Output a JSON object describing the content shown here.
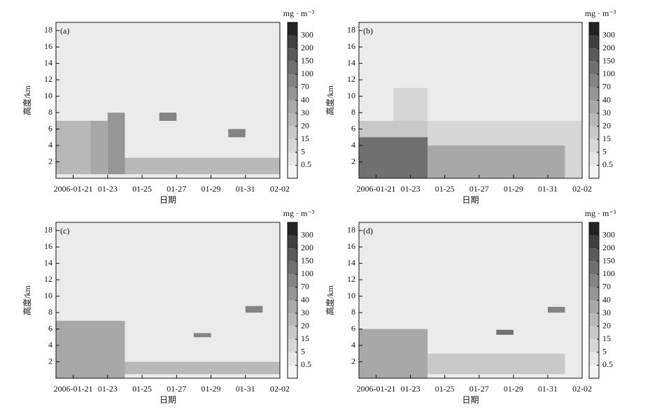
{
  "chart_data": [
    {
      "type": "heatmap",
      "label": "(a)",
      "ylabel": "高度/km",
      "xlabel": "日期",
      "colorbar_label": "mg · m⁻³",
      "xlim": [
        "2006-01-20",
        "2006-02-02"
      ],
      "xticks": [
        "2006-01-21",
        {
          "value": "2006-01-23",
          "label": "01-23"
        },
        {
          "value": "2006-01-25",
          "label": "01-25"
        },
        {
          "value": "2006-01-27",
          "label": "01-27"
        },
        {
          "value": "2006-01-29",
          "label": "01-29"
        },
        {
          "value": "2006-01-31",
          "label": "01-31"
        },
        {
          "value": "2006-02-02",
          "label": "02-02"
        }
      ],
      "ylim": [
        0,
        19
      ],
      "yticks": [
        2,
        4,
        6,
        8,
        10,
        12,
        14,
        16,
        18
      ],
      "colorbar_ticks": [
        0.5,
        5,
        15,
        20,
        30,
        40,
        70,
        100,
        150,
        200,
        300
      ],
      "colors": [
        "#f4f4f4",
        "#e6e6e6",
        "#d6d6d6",
        "#c8c8c8",
        "#b8b8b8",
        "#a8a8a8",
        "#969696",
        "#848484",
        "#707070",
        "#5a5a5a",
        "#404040",
        "#222222"
      ],
      "background": "#ebebeb",
      "patches": [
        {
          "x": [
            "2006-01-20",
            "2006-01-22"
          ],
          "y": [
            0.5,
            7
          ],
          "value": 20
        },
        {
          "x": [
            "2006-01-22",
            "2006-01-23"
          ],
          "y": [
            0.5,
            7
          ],
          "value": 30
        },
        {
          "x": [
            "2006-01-23",
            "2006-01-24"
          ],
          "y": [
            0.5,
            8
          ],
          "value": 40
        },
        {
          "x": [
            "2006-01-24",
            "2006-02-02"
          ],
          "y": [
            0.5,
            2.5
          ],
          "value": 20
        },
        {
          "x": [
            "2006-01-26",
            "2006-01-27"
          ],
          "y": [
            7,
            8
          ],
          "value": 70
        },
        {
          "x": [
            "2006-01-30",
            "2006-01-31"
          ],
          "y": [
            5,
            6
          ],
          "value": 70
        }
      ]
    },
    {
      "type": "heatmap",
      "label": "(b)",
      "ylabel": "高度/km",
      "xlabel": "日期",
      "colorbar_label": "mg · m⁻³",
      "xlim": [
        "2006-01-20",
        "2006-02-02"
      ],
      "xticks": [
        "2006-01-21",
        {
          "value": "2006-01-23",
          "label": "01-23"
        },
        {
          "value": "2006-01-25",
          "label": "01-25"
        },
        {
          "value": "2006-01-27",
          "label": "01-27"
        },
        {
          "value": "2006-01-29",
          "label": "01-29"
        },
        {
          "value": "2006-01-31",
          "label": "01-31"
        },
        {
          "value": "2006-02-02",
          "label": "02-02"
        }
      ],
      "ylim": [
        0,
        19
      ],
      "yticks": [
        2,
        4,
        6,
        8,
        10,
        12,
        14,
        16,
        18
      ],
      "colorbar_ticks": [
        0.5,
        5,
        15,
        20,
        30,
        40,
        70,
        100,
        150,
        200,
        300
      ],
      "colors": [
        "#f4f4f4",
        "#e6e6e6",
        "#d6d6d6",
        "#c8c8c8",
        "#b8b8b8",
        "#a8a8a8",
        "#969696",
        "#848484",
        "#707070",
        "#5a5a5a",
        "#404040",
        "#222222"
      ],
      "background": "#ebebeb",
      "patches": [
        {
          "x": [
            "2006-01-22",
            "2006-01-24"
          ],
          "y": [
            6,
            11
          ],
          "value": 5
        },
        {
          "x": [
            "2006-01-24",
            "2006-02-02"
          ],
          "y": [
            0,
            7
          ],
          "value": 5
        },
        {
          "x": [
            "2006-01-20",
            "2006-01-24"
          ],
          "y": [
            0,
            7
          ],
          "value": 15
        },
        {
          "x": [
            "2006-01-24",
            "2006-02-01"
          ],
          "y": [
            0,
            4
          ],
          "value": 30
        },
        {
          "x": [
            "2006-01-20",
            "2006-01-24"
          ],
          "y": [
            0,
            5
          ],
          "value": 100
        }
      ]
    },
    {
      "type": "heatmap",
      "label": "(c)",
      "ylabel": "高度/km",
      "xlabel": "日期",
      "colorbar_label": "mg · m⁻³",
      "xlim": [
        "2006-01-20",
        "2006-02-02"
      ],
      "xticks": [
        "2006-01-21",
        {
          "value": "2006-01-23",
          "label": "01-23"
        },
        {
          "value": "2006-01-25",
          "label": "01-25"
        },
        {
          "value": "2006-01-27",
          "label": "01-27"
        },
        {
          "value": "2006-01-29",
          "label": "01-29"
        },
        {
          "value": "2006-01-31",
          "label": "01-31"
        },
        {
          "value": "2006-02-02",
          "label": "02-02"
        }
      ],
      "ylim": [
        0,
        19
      ],
      "yticks": [
        2,
        4,
        6,
        8,
        10,
        12,
        14,
        16,
        18
      ],
      "colorbar_ticks": [
        0.5,
        5,
        15,
        20,
        30,
        40,
        70,
        100,
        150,
        200,
        300
      ],
      "colors": [
        "#f4f4f4",
        "#e6e6e6",
        "#d6d6d6",
        "#c8c8c8",
        "#b8b8b8",
        "#a8a8a8",
        "#969696",
        "#848484",
        "#707070",
        "#5a5a5a",
        "#404040",
        "#222222"
      ],
      "background": "#ebebeb",
      "patches": [
        {
          "x": [
            "2006-01-20",
            "2006-01-24"
          ],
          "y": [
            0,
            7
          ],
          "value": 30
        },
        {
          "x": [
            "2006-01-24",
            "2006-02-02"
          ],
          "y": [
            0.5,
            2
          ],
          "value": 20
        },
        {
          "x": [
            "2006-01-28",
            "2006-01-29"
          ],
          "y": [
            5,
            5.5
          ],
          "value": 70
        },
        {
          "x": [
            "2006-01-31",
            "2006-02-01"
          ],
          "y": [
            8,
            8.8
          ],
          "value": 70
        }
      ]
    },
    {
      "type": "heatmap",
      "label": "(d)",
      "ylabel": "高度/km",
      "xlabel": "日期",
      "colorbar_label": "mg · m⁻³",
      "xlim": [
        "2006-01-20",
        "2006-02-02"
      ],
      "xticks": [
        "2006-01-21",
        {
          "value": "2006-01-23",
          "label": "01-23"
        },
        {
          "value": "2006-01-25",
          "label": "01-25"
        },
        {
          "value": "2006-01-27",
          "label": "01-27"
        },
        {
          "value": "2006-01-29",
          "label": "01-29"
        },
        {
          "value": "2006-01-31",
          "label": "01-31"
        },
        {
          "value": "2006-02-02",
          "label": "02-02"
        }
      ],
      "ylim": [
        0,
        19
      ],
      "yticks": [
        2,
        4,
        6,
        8,
        10,
        12,
        14,
        16,
        18
      ],
      "colorbar_ticks": [
        0.5,
        5,
        15,
        20,
        30,
        40,
        70,
        100,
        150,
        200,
        300
      ],
      "colors": [
        "#f4f4f4",
        "#e6e6e6",
        "#d6d6d6",
        "#c8c8c8",
        "#b8b8b8",
        "#a8a8a8",
        "#969696",
        "#848484",
        "#707070",
        "#5a5a5a",
        "#404040",
        "#222222"
      ],
      "background": "#ebebeb",
      "patches": [
        {
          "x": [
            "2006-01-20",
            "2006-01-24"
          ],
          "y": [
            0,
            6
          ],
          "value": 30
        },
        {
          "x": [
            "2006-01-24",
            "2006-02-01"
          ],
          "y": [
            0.5,
            3
          ],
          "value": 15
        },
        {
          "x": [
            "2006-01-28",
            "2006-01-29"
          ],
          "y": [
            5.3,
            5.9
          ],
          "value": 100
        },
        {
          "x": [
            "2006-01-31",
            "2006-02-01"
          ],
          "y": [
            8,
            8.7
          ],
          "value": 70
        }
      ]
    }
  ]
}
